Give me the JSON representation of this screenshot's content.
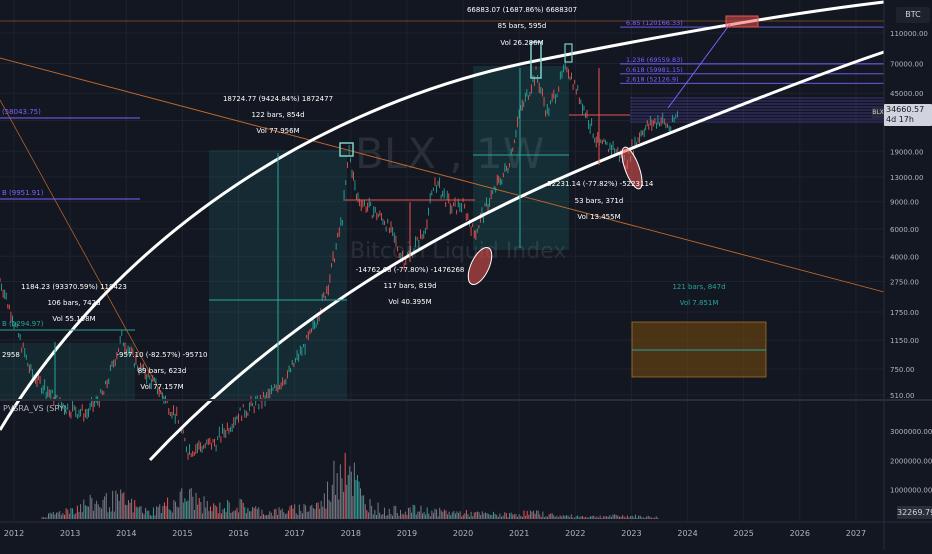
{
  "symbol": "BTC",
  "watermark": {
    "ticker": "BLX , 1W",
    "name": "Bitcoin Liquid Index"
  },
  "price_label": {
    "tag": "BLX",
    "value": "34660.57",
    "countdown": "4d 17h"
  },
  "volume_indicator": {
    "label": "PVSRA_VS (SPY)",
    "last_value": "32269.79"
  },
  "chart_data": {
    "type": "log_price_chart_with_volume",
    "price_axis_ticks": [
      510,
      750,
      1150,
      1750,
      2750,
      4000,
      6000,
      9000,
      13000,
      19000,
      30000,
      45000,
      70000,
      110000
    ],
    "price_axis_labels": [
      "510.00",
      "750.00",
      "1150.00",
      "1750.00",
      "2750.00",
      "4000.00",
      "6000.00",
      "9000.00",
      "13000.00",
      "19000.00",
      "30000.00",
      "45000.00",
      "70000.00",
      "110000.00"
    ],
    "volume_axis_ticks": [
      1000000,
      2000000,
      3000000
    ],
    "volume_axis_labels": [
      "1000000.00",
      "2000000.00",
      "3000000.00"
    ],
    "x_axis_labels": [
      "2012",
      "2013",
      "2014",
      "2015",
      "2016",
      "2017",
      "2018",
      "2019",
      "2020",
      "2021",
      "2022",
      "2023",
      "2024",
      "2025",
      "2026",
      "2027"
    ],
    "last_price": 34660.57,
    "price_series": [
      {
        "x": 2011.75,
        "y": 2800
      },
      {
        "x": 2012.0,
        "y": 1500
      },
      {
        "x": 2012.3,
        "y": 700
      },
      {
        "x": 2012.6,
        "y": 530
      },
      {
        "x": 2012.9,
        "y": 420
      },
      {
        "x": 2013.3,
        "y": 380
      },
      {
        "x": 2013.6,
        "y": 520
      },
      {
        "x": 2013.92,
        "y": 1180
      },
      {
        "x": 2014.2,
        "y": 780
      },
      {
        "x": 2014.5,
        "y": 600
      },
      {
        "x": 2014.9,
        "y": 360
      },
      {
        "x": 2015.1,
        "y": 220
      },
      {
        "x": 2015.6,
        "y": 250
      },
      {
        "x": 2016.0,
        "y": 380
      },
      {
        "x": 2016.5,
        "y": 480
      },
      {
        "x": 2016.9,
        "y": 700
      },
      {
        "x": 2017.3,
        "y": 1250
      },
      {
        "x": 2017.6,
        "y": 2600
      },
      {
        "x": 2017.85,
        "y": 7000
      },
      {
        "x": 2017.97,
        "y": 18700
      },
      {
        "x": 2018.1,
        "y": 9500
      },
      {
        "x": 2018.3,
        "y": 8200
      },
      {
        "x": 2018.6,
        "y": 6800
      },
      {
        "x": 2018.95,
        "y": 3700
      },
      {
        "x": 2019.3,
        "y": 5500
      },
      {
        "x": 2019.5,
        "y": 12000
      },
      {
        "x": 2019.8,
        "y": 8000
      },
      {
        "x": 2020.0,
        "y": 8500
      },
      {
        "x": 2020.2,
        "y": 5500
      },
      {
        "x": 2020.5,
        "y": 9600
      },
      {
        "x": 2020.8,
        "y": 15000
      },
      {
        "x": 2021.0,
        "y": 32000
      },
      {
        "x": 2021.3,
        "y": 60000
      },
      {
        "x": 2021.5,
        "y": 33000
      },
      {
        "x": 2021.85,
        "y": 66800
      },
      {
        "x": 2022.1,
        "y": 40000
      },
      {
        "x": 2022.4,
        "y": 21000
      },
      {
        "x": 2022.7,
        "y": 19500
      },
      {
        "x": 2022.9,
        "y": 16000
      },
      {
        "x": 2023.2,
        "y": 26000
      },
      {
        "x": 2023.5,
        "y": 30000
      },
      {
        "x": 2023.7,
        "y": 26500
      },
      {
        "x": 2023.85,
        "y": 34660
      }
    ],
    "volume_series": [
      {
        "x": 2012.5,
        "y": 80000
      },
      {
        "x": 2013.3,
        "y": 700000
      },
      {
        "x": 2013.9,
        "y": 900000
      },
      {
        "x": 2014.4,
        "y": 300000
      },
      {
        "x": 2015.1,
        "y": 1100000
      },
      {
        "x": 2015.5,
        "y": 500000
      },
      {
        "x": 2016.0,
        "y": 650000
      },
      {
        "x": 2016.5,
        "y": 300000
      },
      {
        "x": 2017.0,
        "y": 450000
      },
      {
        "x": 2017.5,
        "y": 700000
      },
      {
        "x": 2017.9,
        "y": 3200000
      },
      {
        "x": 2018.2,
        "y": 900000
      },
      {
        "x": 2018.6,
        "y": 350000
      },
      {
        "x": 2019.0,
        "y": 450000
      },
      {
        "x": 2019.5,
        "y": 350000
      },
      {
        "x": 2020.2,
        "y": 250000
      },
      {
        "x": 2020.8,
        "y": 200000
      },
      {
        "x": 2021.2,
        "y": 300000
      },
      {
        "x": 2021.7,
        "y": 150000
      },
      {
        "x": 2022.3,
        "y": 120000
      },
      {
        "x": 2022.9,
        "y": 150000
      },
      {
        "x": 2023.5,
        "y": 80000
      }
    ],
    "annotations": [
      {
        "text": "1184.23 (93370.59%) 118423",
        "x": 2013.6
      },
      {
        "text": "106 bars, 742d",
        "x": 2013.6
      },
      {
        "text": "Vol 55.198M",
        "x": 2013.6
      },
      {
        "text": "18724.77 (9424.84%) 1872477",
        "x": 2017.5
      },
      {
        "text": "122 bars, 854d",
        "x": 2017.5
      },
      {
        "text": "Vol 77.956M",
        "x": 2017.5
      },
      {
        "text": "66883.07 (1687.86%) 6688307",
        "x": 2020.9
      },
      {
        "text": "85 bars, 595d",
        "x": 2020.9
      },
      {
        "text": "Vol 26.286M",
        "x": 2020.9
      },
      {
        "text": "-957.10 (-82.57%) -95710",
        "x": 2014.6
      },
      {
        "text": "89 bars, 623d",
        "x": 2014.6
      },
      {
        "text": "Vol 77.157M",
        "x": 2014.6
      },
      {
        "text": "-14762.68 (-77.80%) -1476268",
        "x": 2018.8
      },
      {
        "text": "117 bars, 819d",
        "x": 2018.8
      },
      {
        "text": "Vol 40.395M",
        "x": 2018.8
      },
      {
        "text": "-52231.14 (-77.82%) -5223114",
        "x": 2022.3
      },
      {
        "text": "53 bars, 371d",
        "x": 2022.3
      },
      {
        "text": "Vol 13.455M",
        "x": 2022.3
      },
      {
        "text": "121 bars, 847d",
        "x": 2024.0
      },
      {
        "text": "Vol 7.851M",
        "x": 2024.0
      }
    ],
    "fib_levels": [
      {
        "label": "6.85 (120166.33)",
        "y": 120166.33
      },
      {
        "label": "1.236 (69559.83)",
        "y": 69559.83
      },
      {
        "label": "0.618 (59981.15)",
        "y": 59981.15
      },
      {
        "label": "2.618 (52126.9)",
        "y": 52126.9
      }
    ],
    "side_labels": [
      {
        "text": "(58043.75)",
        "y": 33000
      },
      {
        "text": "B (9951.91)",
        "y": 9950
      },
      {
        "text": "B (1294.97)",
        "y": 1295
      },
      {
        "text": "2958",
        "y": 1050
      }
    ]
  },
  "colors": {
    "background": "#131722",
    "up": "#26a69a",
    "down": "#ef5350",
    "arc": "#ffffff",
    "fib": "#7b61ff",
    "grid": "#1e222d",
    "trend": "#c46a2c"
  }
}
